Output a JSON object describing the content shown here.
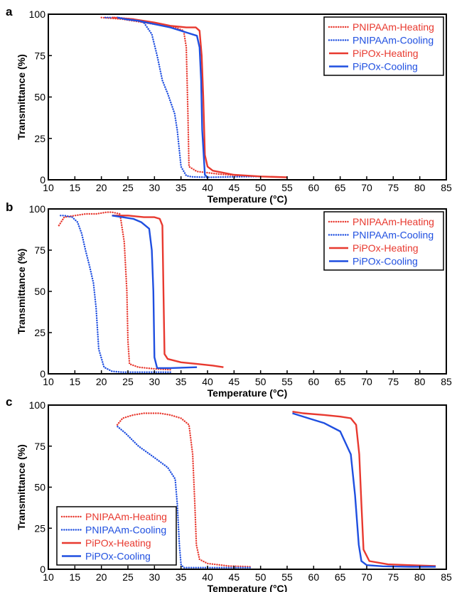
{
  "chart_data": [
    {
      "type": "line",
      "panel_label": "a",
      "xlabel": "Temperature (°C)",
      "ylabel": "Transmittance (%)",
      "xlim": [
        10,
        85
      ],
      "ylim": [
        0,
        100
      ],
      "xticks": [
        10,
        15,
        20,
        25,
        30,
        35,
        40,
        45,
        50,
        55,
        60,
        65,
        70,
        75,
        80,
        85
      ],
      "yticks": [
        0,
        25,
        50,
        75,
        100
      ],
      "legend_position": "top-right",
      "series": [
        {
          "name": "PNIPAAm-Heating",
          "color": "#e8392f",
          "style": "dotted",
          "points": [
            [
              20,
              98
            ],
            [
              24,
              97
            ],
            [
              28,
              95
            ],
            [
              32,
              93
            ],
            [
              34,
              92
            ],
            [
              35.5,
              90
            ],
            [
              36,
              80
            ],
            [
              36.3,
              40
            ],
            [
              36.5,
              8
            ],
            [
              38,
              5
            ],
            [
              42,
              3.5
            ],
            [
              46,
              2.5
            ],
            [
              50,
              2
            ]
          ]
        },
        {
          "name": "PNIPAAm-Cooling",
          "color": "#1f4fe0",
          "style": "dotted",
          "points": [
            [
              50,
              2
            ],
            [
              45,
              1.8
            ],
            [
              40,
              1.5
            ],
            [
              37,
              1.8
            ],
            [
              36,
              2.5
            ],
            [
              35,
              8
            ],
            [
              34.3,
              30
            ],
            [
              33.8,
              40
            ],
            [
              32.5,
              52
            ],
            [
              31.5,
              60
            ],
            [
              30.5,
              75
            ],
            [
              29.5,
              88
            ],
            [
              28,
              95
            ],
            [
              26,
              97
            ],
            [
              23,
              98
            ],
            [
              20.5,
              98
            ]
          ]
        },
        {
          "name": "PiPOx-Heating",
          "color": "#e8392f",
          "style": "solid",
          "points": [
            [
              22,
              98
            ],
            [
              26,
              97
            ],
            [
              30,
              95
            ],
            [
              33,
              93
            ],
            [
              36,
              92
            ],
            [
              37.8,
              92
            ],
            [
              38.5,
              90
            ],
            [
              38.9,
              75
            ],
            [
              39.2,
              50
            ],
            [
              39.5,
              15
            ],
            [
              40,
              8
            ],
            [
              41,
              5.5
            ],
            [
              45,
              3
            ],
            [
              50,
              2
            ],
            [
              55,
              1.5
            ]
          ]
        },
        {
          "name": "PiPOx-Cooling",
          "color": "#1f4fe0",
          "style": "solid",
          "points": [
            [
              40,
              1.5
            ],
            [
              39.5,
              3
            ],
            [
              39,
              30
            ],
            [
              38.8,
              60
            ],
            [
              38.5,
              80
            ],
            [
              38,
              87
            ],
            [
              36,
              89
            ],
            [
              33,
              92
            ],
            [
              30,
              94
            ],
            [
              27,
              96
            ],
            [
              24.5,
              97
            ],
            [
              23,
              98
            ]
          ]
        }
      ]
    },
    {
      "type": "line",
      "panel_label": "b",
      "xlabel": "Temperature (°C)",
      "ylabel": "Transmittance (%)",
      "xlim": [
        10,
        85
      ],
      "ylim": [
        0,
        100
      ],
      "xticks": [
        10,
        15,
        20,
        25,
        30,
        35,
        40,
        45,
        50,
        55,
        60,
        65,
        70,
        75,
        80,
        85
      ],
      "yticks": [
        0,
        25,
        50,
        75,
        100
      ],
      "legend_position": "top-right",
      "series": [
        {
          "name": "PNIPAAm-Heating",
          "color": "#e8392f",
          "style": "dotted",
          "points": [
            [
              12,
              90
            ],
            [
              13,
              95
            ],
            [
              15,
              96
            ],
            [
              17,
              97
            ],
            [
              19,
              97
            ],
            [
              21,
              98
            ],
            [
              22,
              98
            ],
            [
              23.5,
              97
            ],
            [
              24.3,
              80
            ],
            [
              24.8,
              50
            ],
            [
              25,
              20
            ],
            [
              25.3,
              6
            ],
            [
              27,
              4
            ],
            [
              30,
              3
            ],
            [
              33,
              2.5
            ]
          ]
        },
        {
          "name": "PNIPAAm-Cooling",
          "color": "#1f4fe0",
          "style": "dotted",
          "points": [
            [
              33,
              1
            ],
            [
              28,
              1
            ],
            [
              24,
              1
            ],
            [
              22,
              1.5
            ],
            [
              20.5,
              4
            ],
            [
              19.5,
              15
            ],
            [
              19,
              40
            ],
            [
              18.5,
              55
            ],
            [
              17.8,
              65
            ],
            [
              17,
              75
            ],
            [
              16.3,
              85
            ],
            [
              15.5,
              92
            ],
            [
              14.5,
              95
            ],
            [
              13,
              96
            ],
            [
              12.2,
              96
            ]
          ]
        },
        {
          "name": "PiPOx-Heating",
          "color": "#e8392f",
          "style": "solid",
          "points": [
            [
              22,
              96
            ],
            [
              25,
              96
            ],
            [
              28,
              95
            ],
            [
              30,
              95
            ],
            [
              31,
              94
            ],
            [
              31.5,
              90
            ],
            [
              31.7,
              50
            ],
            [
              31.9,
              12
            ],
            [
              32.5,
              9
            ],
            [
              35,
              7
            ],
            [
              38,
              6
            ],
            [
              41,
              5
            ],
            [
              43,
              4
            ]
          ]
        },
        {
          "name": "PiPOx-Cooling",
          "color": "#1f4fe0",
          "style": "solid",
          "points": [
            [
              38,
              4
            ],
            [
              33,
              3.5
            ],
            [
              30.5,
              3.5
            ],
            [
              30,
              10
            ],
            [
              29.8,
              50
            ],
            [
              29.5,
              75
            ],
            [
              29,
              88
            ],
            [
              27.5,
              92
            ],
            [
              26,
              94
            ],
            [
              24,
              95
            ],
            [
              22,
              96
            ]
          ]
        }
      ]
    },
    {
      "type": "line",
      "panel_label": "c",
      "xlabel": "Temperature (°C)",
      "ylabel": "Transmittance (%)",
      "xlim": [
        10,
        85
      ],
      "ylim": [
        0,
        100
      ],
      "xticks": [
        10,
        15,
        20,
        25,
        30,
        35,
        40,
        45,
        50,
        55,
        60,
        65,
        70,
        75,
        80,
        85
      ],
      "yticks": [
        0,
        25,
        50,
        75,
        100
      ],
      "legend_position": "bottom-left",
      "series": [
        {
          "name": "PNIPAAm-Heating",
          "color": "#e8392f",
          "style": "dotted",
          "points": [
            [
              23,
              88
            ],
            [
              24,
              92
            ],
            [
              26,
              94
            ],
            [
              28,
              95
            ],
            [
              31,
              95
            ],
            [
              33,
              94
            ],
            [
              35,
              92
            ],
            [
              36.5,
              88
            ],
            [
              37.2,
              70
            ],
            [
              37.6,
              40
            ],
            [
              37.9,
              15
            ],
            [
              38.5,
              6
            ],
            [
              40,
              3.5
            ],
            [
              44,
              2
            ],
            [
              48,
              1.5
            ]
          ]
        },
        {
          "name": "PNIPAAm-Cooling",
          "color": "#1f4fe0",
          "style": "dotted",
          "points": [
            [
              48,
              1
            ],
            [
              42,
              1
            ],
            [
              38,
              1
            ],
            [
              35.5,
              1
            ],
            [
              35,
              3
            ],
            [
              34.7,
              15
            ],
            [
              34.3,
              40
            ],
            [
              33.9,
              55
            ],
            [
              32.5,
              62
            ],
            [
              30,
              68
            ],
            [
              27,
              75
            ],
            [
              24.5,
              83
            ],
            [
              23,
              87
            ]
          ]
        },
        {
          "name": "PiPOx-Heating",
          "color": "#e8392f",
          "style": "solid",
          "points": [
            [
              56,
              96
            ],
            [
              58,
              95
            ],
            [
              62,
              94
            ],
            [
              65,
              93
            ],
            [
              67,
              92
            ],
            [
              68,
              88
            ],
            [
              68.6,
              70
            ],
            [
              69,
              40
            ],
            [
              69.4,
              12
            ],
            [
              70.5,
              5
            ],
            [
              74,
              3
            ],
            [
              78,
              2.5
            ],
            [
              83,
              2
            ]
          ]
        },
        {
          "name": "PiPOx-Cooling",
          "color": "#1f4fe0",
          "style": "solid",
          "points": [
            [
              83,
              1.5
            ],
            [
              78,
              1.5
            ],
            [
              73,
              1.8
            ],
            [
              70,
              2.5
            ],
            [
              69,
              5
            ],
            [
              68.5,
              15
            ],
            [
              67.8,
              45
            ],
            [
              67,
              70
            ],
            [
              65,
              84
            ],
            [
              62,
              89
            ],
            [
              59,
              92
            ],
            [
              56,
              95
            ]
          ]
        }
      ]
    }
  ]
}
